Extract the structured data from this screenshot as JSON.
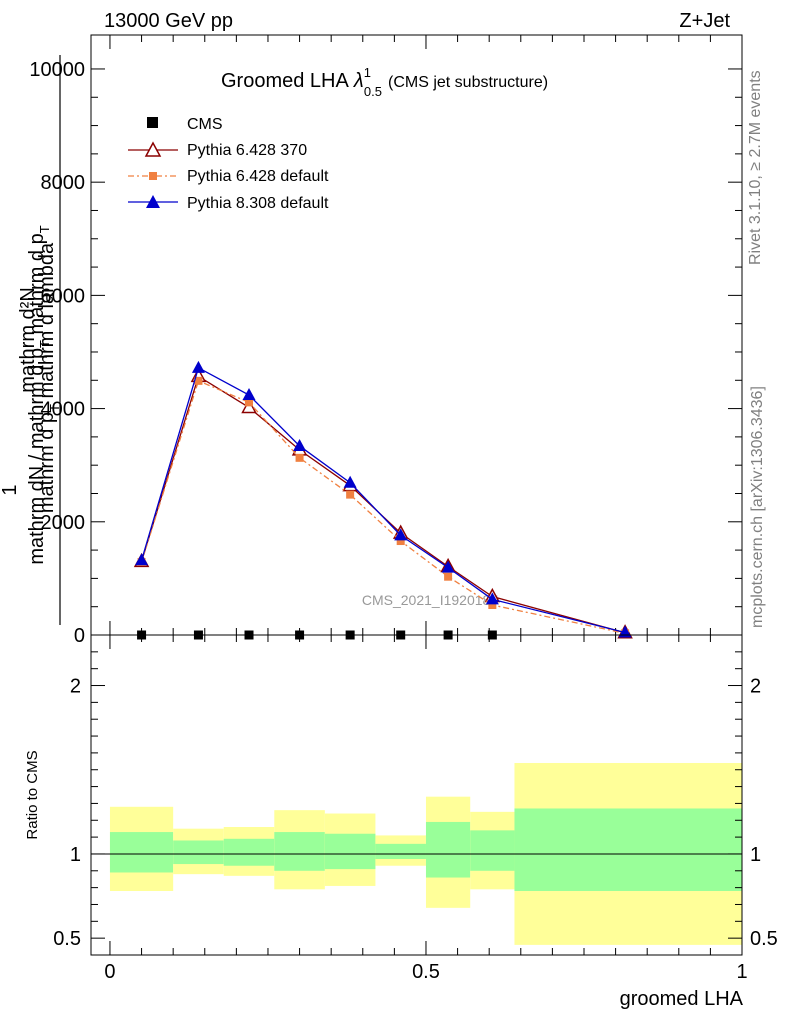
{
  "header": {
    "energy_label": "13000 GeV pp",
    "process_label": "Z+Jet"
  },
  "side_labels": {
    "rivet": "Rivet 3.1.10, ≥ 2.7M events",
    "mcplots": "mcplots.cern.ch [arXiv:1306.3436]"
  },
  "watermark": "CMS_2021_I1920187",
  "chart_data": [
    {
      "type": "line",
      "title": {
        "main": "Groomed LHA",
        "lambda": "λ",
        "superscript": "1",
        "subscript": "0.5",
        "note": "(CMS jet substructure)"
      },
      "ylabel": {
        "line1": "mathrm d²N",
        "line2": "mathrm d p",
        "line2_sub": "T",
        "line2_tail": " mathrm d lambda",
        "numerator": "1",
        "line3": "mathrm dN / mathrm d p",
        "line3_sub": "T",
        "line3_tail": " mathrm d p",
        "line3_sub2": "T"
      },
      "ylim": [
        0,
        10600
      ],
      "y_ticks": [
        {
          "value": 0,
          "label": "0"
        },
        {
          "value": 2000,
          "label": "2000"
        },
        {
          "value": 4000,
          "label": "4000"
        },
        {
          "value": 6000,
          "label": "6000"
        },
        {
          "value": 8000,
          "label": "8000"
        },
        {
          "value": 10000,
          "label": "10000"
        }
      ],
      "xlim": [
        -0.03,
        1.0
      ],
      "legend": {
        "position": "top-left",
        "entries": [
          "CMS",
          "Pythia 6.428 370",
          "Pythia 6.428 default",
          "Pythia 8.308 default"
        ]
      },
      "series": [
        {
          "name": "CMS",
          "color": "#000000",
          "marker": "square",
          "x": [
            0.05,
            0.14,
            0.22,
            0.3,
            0.38,
            0.46,
            0.535,
            0.605
          ],
          "y": [
            0,
            0,
            0,
            0,
            0,
            0,
            0,
            0
          ]
        },
        {
          "name": "Pythia 6.428 370",
          "color": "#8b0000",
          "marker": "triangle-open",
          "dash": "",
          "x": [
            0.05,
            0.14,
            0.22,
            0.3,
            0.38,
            0.46,
            0.535,
            0.605,
            0.815
          ],
          "y": [
            1300,
            4570,
            4020,
            3270,
            2640,
            1800,
            1210,
            680,
            40
          ]
        },
        {
          "name": "Pythia 6.428 default",
          "color": "#f08040",
          "marker": "square",
          "dash": "6,3,2,3",
          "x": [
            0.05,
            0.14,
            0.22,
            0.3,
            0.38,
            0.46,
            0.535,
            0.605,
            0.815
          ],
          "y": [
            1290,
            4490,
            4110,
            3130,
            2480,
            1660,
            1030,
            530,
            30
          ]
        },
        {
          "name": "Pythia 8.308 default",
          "color": "#0000cc",
          "marker": "triangle-filled",
          "dash": "",
          "x": [
            0.05,
            0.14,
            0.22,
            0.3,
            0.38,
            0.46,
            0.535,
            0.605,
            0.815
          ],
          "y": [
            1320,
            4720,
            4240,
            3340,
            2690,
            1760,
            1190,
            630,
            45
          ]
        }
      ]
    },
    {
      "type": "area",
      "ylabel": "Ratio to CMS",
      "xlabel": "groomed LHA",
      "ylim": [
        0.4,
        2.3
      ],
      "xlim": [
        -0.03,
        1.0
      ],
      "y_ticks": [
        {
          "value": 0.5,
          "label": "0.5"
        },
        {
          "value": 1,
          "label": "1"
        },
        {
          "value": 2,
          "label": "2"
        }
      ],
      "x_ticks": [
        {
          "value": 0,
          "label": "0"
        },
        {
          "value": 0.5,
          "label": "0.5"
        },
        {
          "value": 1,
          "label": "1"
        }
      ],
      "band_colors": {
        "outer": "#ffff99",
        "inner": "#99ff99",
        "reference_line": "#000000"
      },
      "bins": [
        {
          "x0": 0.0,
          "x1": 0.1,
          "outer": [
            0.78,
            1.28
          ],
          "inner": [
            0.89,
            1.13
          ]
        },
        {
          "x0": 0.1,
          "x1": 0.18,
          "outer": [
            0.88,
            1.15
          ],
          "inner": [
            0.94,
            1.08
          ]
        },
        {
          "x0": 0.18,
          "x1": 0.26,
          "outer": [
            0.87,
            1.16
          ],
          "inner": [
            0.93,
            1.09
          ]
        },
        {
          "x0": 0.26,
          "x1": 0.34,
          "outer": [
            0.79,
            1.26
          ],
          "inner": [
            0.9,
            1.13
          ]
        },
        {
          "x0": 0.34,
          "x1": 0.42,
          "outer": [
            0.81,
            1.24
          ],
          "inner": [
            0.91,
            1.12
          ]
        },
        {
          "x0": 0.42,
          "x1": 0.5,
          "outer": [
            0.93,
            1.11
          ],
          "inner": [
            0.97,
            1.06
          ]
        },
        {
          "x0": 0.5,
          "x1": 0.57,
          "outer": [
            0.68,
            1.34
          ],
          "inner": [
            0.86,
            1.19
          ]
        },
        {
          "x0": 0.57,
          "x1": 0.64,
          "outer": [
            0.79,
            1.25
          ],
          "inner": [
            0.9,
            1.14
          ]
        },
        {
          "x0": 0.64,
          "x1": 1.0,
          "outer": [
            0.46,
            1.54
          ],
          "inner": [
            0.78,
            1.27
          ]
        }
      ]
    }
  ]
}
